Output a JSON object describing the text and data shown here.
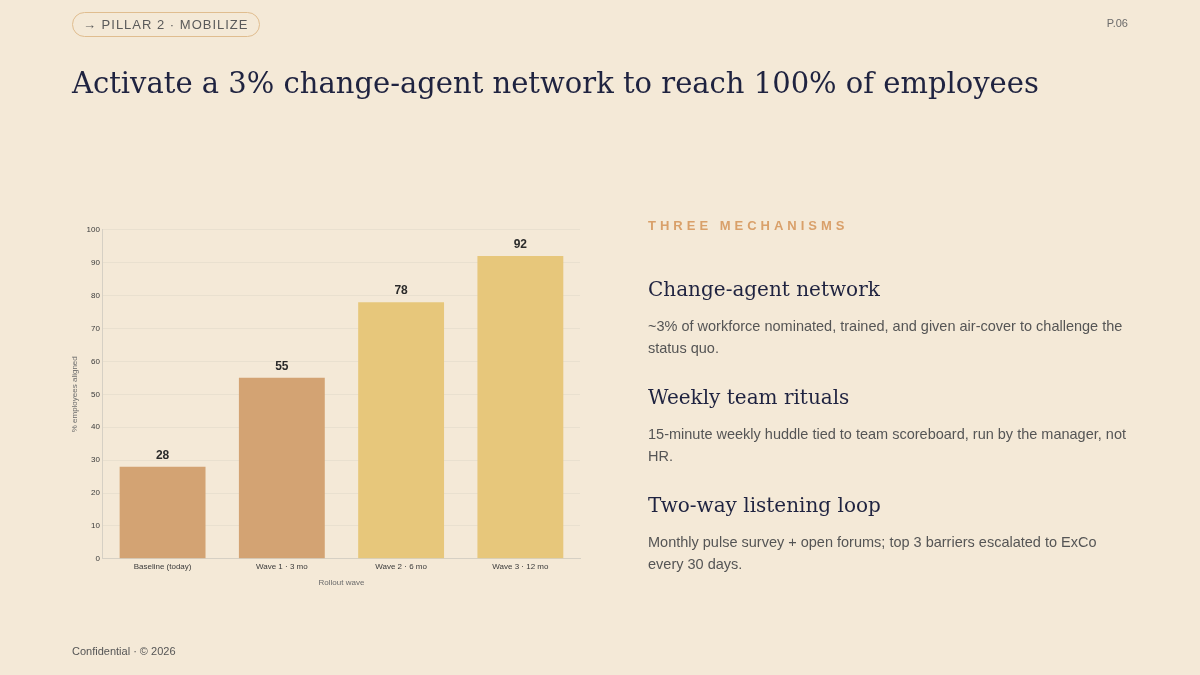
{
  "chart_data": {
    "type": "bar",
    "title": "Activate a 3% change-agent network to reach 100% of employees",
    "xlabel": "Rollout wave",
    "ylabel": "% employees aligned",
    "categories": [
      "Baseline (today)",
      "Wave 1 · 3 mo",
      "Wave 2 · 6 mo",
      "Wave 3 · 12 mo"
    ],
    "values": [
      28,
      55,
      78,
      92
    ],
    "colors": [
      "#d3a373",
      "#d3a373",
      "#e7c77b",
      "#e7c77b"
    ],
    "ylim": [
      0,
      100
    ],
    "yticks": [
      0,
      10,
      20,
      30,
      40,
      50,
      60,
      70,
      80,
      90,
      100
    ],
    "grid": "y",
    "legend": false,
    "data_labels": true,
    "annotations": [
      "→ PILLAR 2 · MOBILIZE",
      "P.06",
      "THREE MECHANISMS",
      "Change-agent network",
      "~3% of workforce nominated, trained, and given air-cover to challenge the status quo.",
      "Weekly team rituals",
      "15-minute weekly huddle tied to team scoreboard, run by the manager, not HR.",
      "Two-way listening loop",
      "Monthly pulse survey + open forums; top 3 barriers escalated to ExCo every 30 days.",
      "Confidential · © 2026"
    ]
  }
}
